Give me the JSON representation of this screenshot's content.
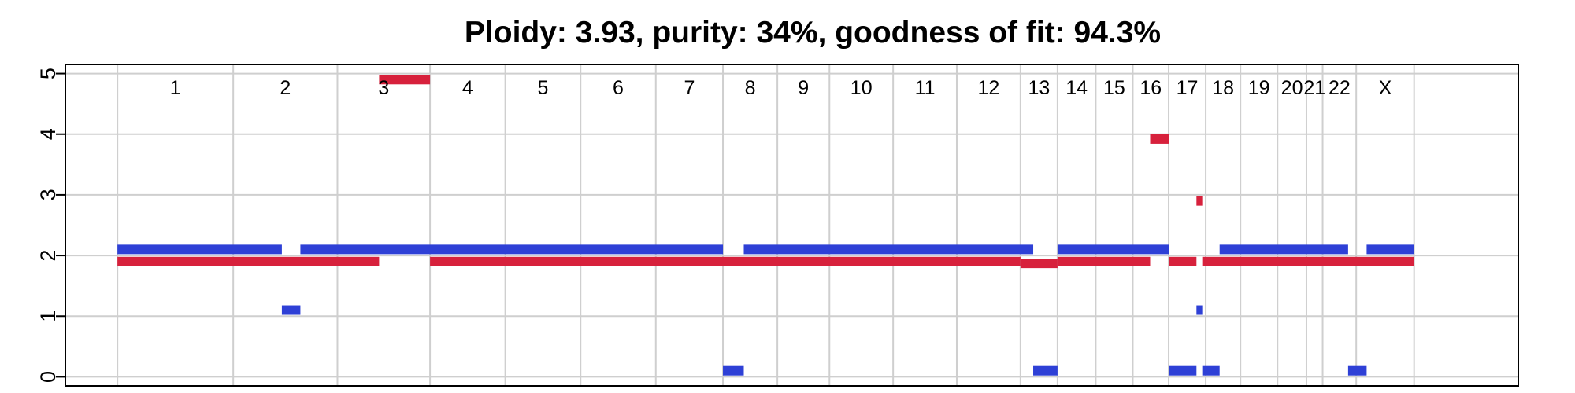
{
  "chart_data": {
    "type": "segment",
    "title": "Ploidy: 3.93, purity: 34%, goodness of fit: 94.3%",
    "xlabel": "",
    "ylabel": "",
    "ylim": [
      -0.15,
      5.15
    ],
    "yticks": [
      "0",
      "1",
      "2",
      "3",
      "4",
      "5"
    ],
    "xlim": [
      -4.5,
      121
    ],
    "grid": true,
    "chromosomes": [
      {
        "name": "1",
        "start": 0,
        "end": 10
      },
      {
        "name": "2",
        "start": 10,
        "end": 19
      },
      {
        "name": "3",
        "start": 19,
        "end": 27
      },
      {
        "name": "4",
        "start": 27,
        "end": 33.5
      },
      {
        "name": "5",
        "start": 33.5,
        "end": 40
      },
      {
        "name": "6",
        "start": 40,
        "end": 46.5
      },
      {
        "name": "7",
        "start": 46.5,
        "end": 52.3
      },
      {
        "name": "8",
        "start": 52.3,
        "end": 57
      },
      {
        "name": "9",
        "start": 57,
        "end": 61.5
      },
      {
        "name": "10",
        "start": 61.5,
        "end": 67
      },
      {
        "name": "11",
        "start": 67,
        "end": 72.5
      },
      {
        "name": "12",
        "start": 72.5,
        "end": 78
      },
      {
        "name": "13",
        "start": 78,
        "end": 81.2
      },
      {
        "name": "14",
        "start": 81.2,
        "end": 84.5
      },
      {
        "name": "15",
        "start": 84.5,
        "end": 87.7
      },
      {
        "name": "16",
        "start": 87.7,
        "end": 90.8
      },
      {
        "name": "17",
        "start": 90.8,
        "end": 94
      },
      {
        "name": "18",
        "start": 94,
        "end": 97
      },
      {
        "name": "19",
        "start": 97,
        "end": 100.2
      },
      {
        "name": "20",
        "start": 100.2,
        "end": 102.7
      },
      {
        "name": "21",
        "start": 102.7,
        "end": 104.1
      },
      {
        "name": "22",
        "start": 104.1,
        "end": 107
      },
      {
        "name": "X",
        "start": 107,
        "end": 112
      }
    ],
    "series": [
      {
        "color": "#d7213c",
        "segments": [
          {
            "start": 0,
            "end": 22.6,
            "value": 1.9
          },
          {
            "start": 22.6,
            "end": 27,
            "value": 4.9
          },
          {
            "start": 27,
            "end": 78,
            "value": 1.9
          },
          {
            "start": 78,
            "end": 81.2,
            "value": 1.87
          },
          {
            "start": 81.2,
            "end": 89.2,
            "value": 1.9
          },
          {
            "start": 89.2,
            "end": 90.8,
            "value": 3.92
          },
          {
            "start": 90.8,
            "end": 93.2,
            "value": 1.9
          },
          {
            "start": 93.2,
            "end": 93.7,
            "value": 2.9
          },
          {
            "start": 93.7,
            "end": 112,
            "value": 1.9
          }
        ]
      },
      {
        "color": "#2e40d6",
        "segments": [
          {
            "start": 0,
            "end": 14.2,
            "value": 2.1
          },
          {
            "start": 14.2,
            "end": 15.8,
            "value": 1.1
          },
          {
            "start": 15.8,
            "end": 52.3,
            "value": 2.1
          },
          {
            "start": 52.3,
            "end": 54.1,
            "value": 0.1
          },
          {
            "start": 54.1,
            "end": 79.1,
            "value": 2.1
          },
          {
            "start": 79.1,
            "end": 81.2,
            "value": 0.1
          },
          {
            "start": 81.2,
            "end": 90.8,
            "value": 2.1
          },
          {
            "start": 90.8,
            "end": 93.2,
            "value": 0.1
          },
          {
            "start": 93.2,
            "end": 93.7,
            "value": 1.1
          },
          {
            "start": 93.7,
            "end": 95.2,
            "value": 0.1
          },
          {
            "start": 95.2,
            "end": 106.3,
            "value": 2.1
          },
          {
            "start": 106.3,
            "end": 107.9,
            "value": 0.1
          },
          {
            "start": 107.9,
            "end": 112,
            "value": 2.1
          }
        ]
      }
    ]
  }
}
